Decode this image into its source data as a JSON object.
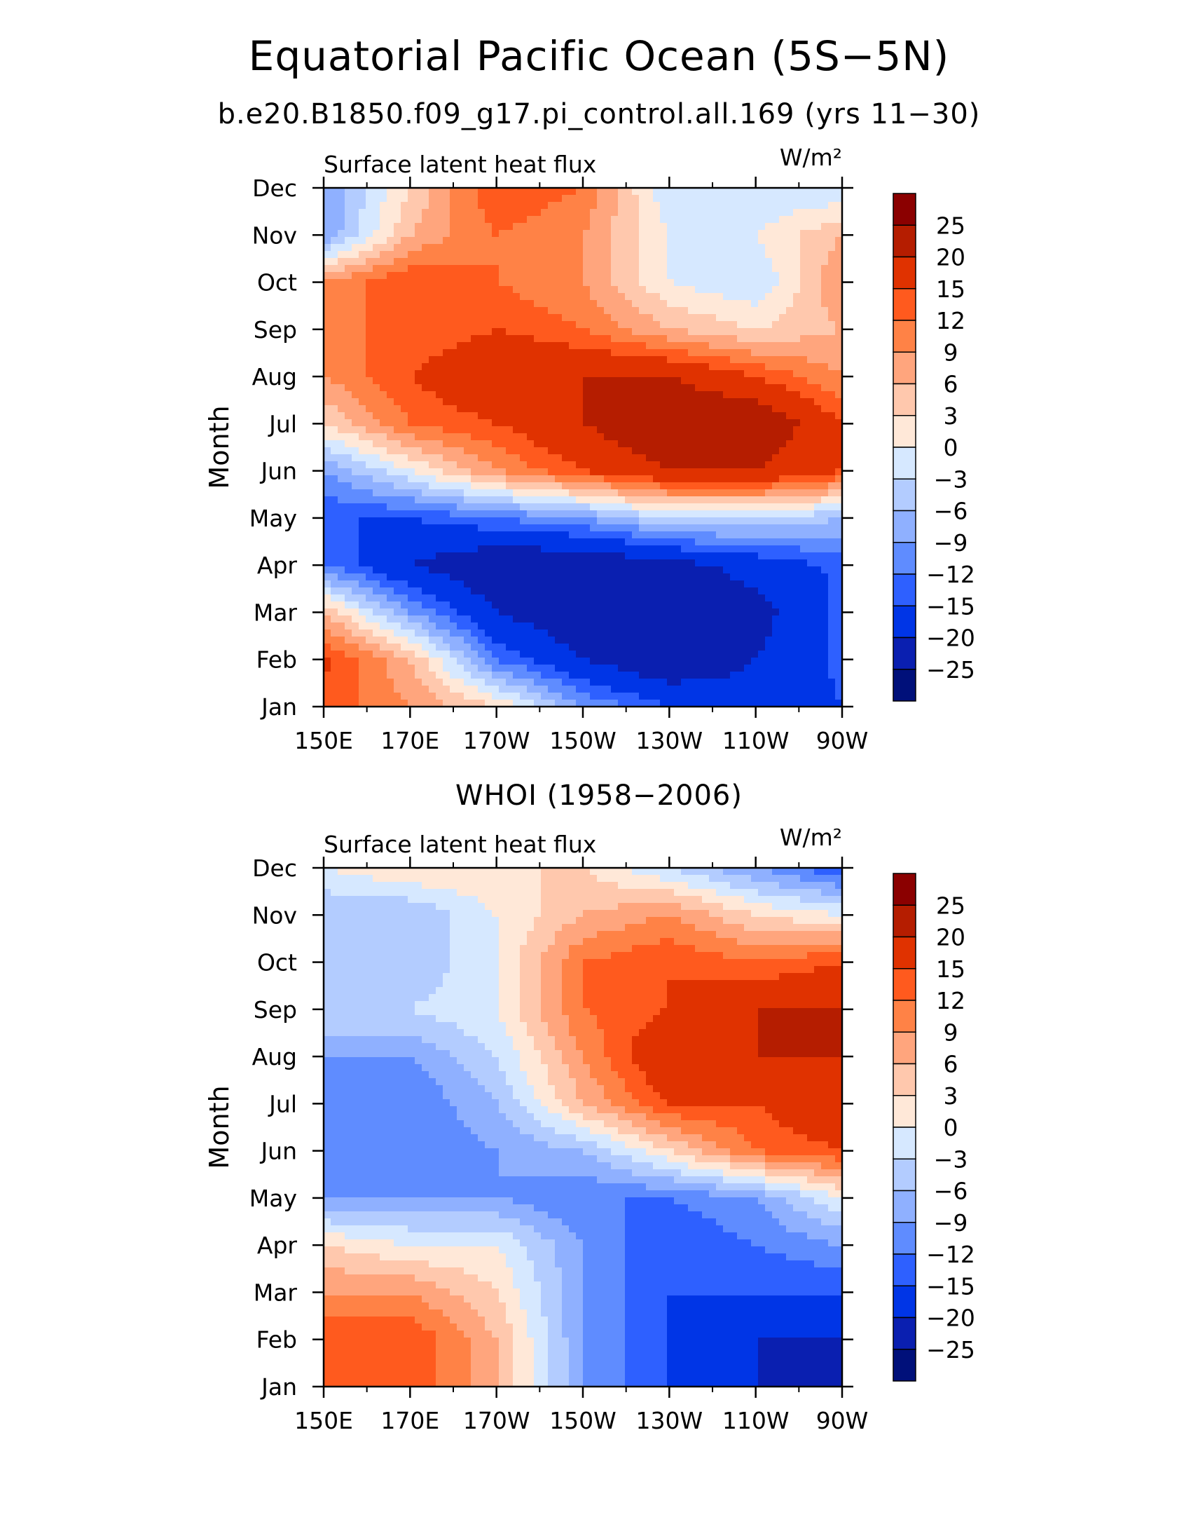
{
  "title": "Equatorial Pacific Ocean (5S−5N)",
  "subtitle": "b.e20.B1850.f09_g17.pi_control.all.169 (yrs 11−30)",
  "colorbar": {
    "labels": [
      "25",
      "20",
      "15",
      "12",
      "9",
      "6",
      "3",
      "0",
      "−3",
      "−6",
      "−9",
      "−12",
      "−15",
      "−20",
      "−25"
    ],
    "levels": [
      25,
      20,
      15,
      12,
      9,
      6,
      3,
      0,
      -3,
      -6,
      -9,
      -12,
      -15,
      -20,
      -25
    ],
    "colors": [
      "#8b0000",
      "#b51d00",
      "#e03200",
      "#ff5a1e",
      "#ff8246",
      "#ffa57d",
      "#ffc8ad",
      "#ffe8d8",
      "#d6e8ff",
      "#b3ccff",
      "#8fb0ff",
      "#5f8cff",
      "#2e60ff",
      "#0035e6",
      "#0a1fb0",
      "#00107a"
    ]
  },
  "chart_data": [
    {
      "type": "heatmap",
      "panel_title": "",
      "left_label": "Surface latent heat flux",
      "units": "W/m²",
      "ylabel": "Month",
      "xlabel": "",
      "x_ticks": [
        "150E",
        "170E",
        "170W",
        "150W",
        "130W",
        "110W",
        "90W"
      ],
      "y_ticks": [
        "Jan",
        "Feb",
        "Mar",
        "Apr",
        "May",
        "Jun",
        "Jul",
        "Aug",
        "Sep",
        "Oct",
        "Nov",
        "Dec"
      ],
      "x_values": [
        150,
        170,
        190,
        210,
        230,
        250,
        270
      ],
      "values": [
        [
          14,
          9,
          3,
          -9,
          -15,
          -18,
          -15
        ],
        [
          16,
          6,
          -12,
          -20,
          -25,
          -20,
          -14
        ],
        [
          6,
          -9,
          -20,
          -25,
          -25,
          -22,
          -14
        ],
        [
          -12,
          -20,
          -25,
          -25,
          -22,
          -18,
          -14
        ],
        [
          -15,
          -15,
          -12,
          -9,
          -3,
          -3,
          -6
        ],
        [
          -9,
          0,
          9,
          15,
          20,
          20,
          15
        ],
        [
          3,
          12,
          15,
          20,
          25,
          25,
          15
        ],
        [
          9,
          15,
          20,
          20,
          20,
          15,
          9
        ],
        [
          12,
          12,
          15,
          12,
          6,
          3,
          6
        ],
        [
          9,
          15,
          12,
          9,
          0,
          -3,
          9
        ],
        [
          -9,
          6,
          12,
          9,
          0,
          0,
          6
        ],
        [
          -9,
          3,
          15,
          12,
          -3,
          -3,
          -3
        ]
      ]
    },
    {
      "type": "heatmap",
      "panel_title": "WHOI (1958−2006)",
      "left_label": "Surface latent heat flux",
      "units": "W/m²",
      "ylabel": "Month",
      "xlabel": "",
      "x_ticks": [
        "150E",
        "170E",
        "170W",
        "150W",
        "130W",
        "110W",
        "90W"
      ],
      "y_ticks": [
        "Jan",
        "Feb",
        "Mar",
        "Apr",
        "May",
        "Jun",
        "Jul",
        "Aug",
        "Sep",
        "Oct",
        "Nov",
        "Dec"
      ],
      "x_values": [
        150,
        170,
        190,
        210,
        230,
        250,
        270
      ],
      "values": [
        [
          12,
          15,
          6,
          -9,
          -15,
          -20,
          -25
        ],
        [
          15,
          15,
          6,
          -9,
          -15,
          -20,
          -20
        ],
        [
          9,
          9,
          3,
          -9,
          -15,
          -15,
          -15
        ],
        [
          3,
          0,
          0,
          -9,
          -15,
          -12,
          -9
        ],
        [
          -9,
          -9,
          -9,
          -12,
          -12,
          -9,
          0
        ],
        [
          -12,
          -12,
          -9,
          -6,
          3,
          12,
          15
        ],
        [
          -12,
          -12,
          -6,
          6,
          15,
          15,
          20
        ],
        [
          -9,
          -9,
          -3,
          9,
          20,
          20,
          20
        ],
        [
          -3,
          -3,
          0,
          12,
          15,
          20,
          20
        ],
        [
          -3,
          -6,
          0,
          12,
          15,
          12,
          15
        ],
        [
          -6,
          -6,
          0,
          6,
          9,
          3,
          0
        ],
        [
          0,
          3,
          3,
          3,
          -3,
          -9,
          -15
        ]
      ]
    }
  ]
}
